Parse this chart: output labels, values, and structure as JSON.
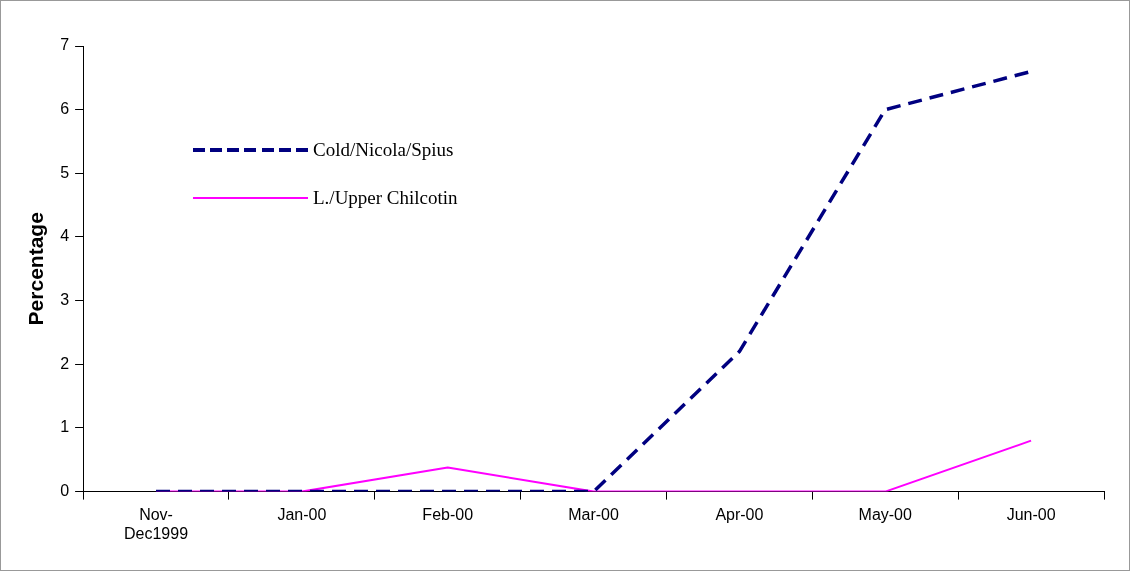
{
  "chart_data": {
    "type": "line",
    "ylabel": "Percentage",
    "categories": [
      "Nov-Dec1999",
      "Jan-00",
      "Feb-00",
      "Mar-00",
      "Apr-00",
      "May-00",
      "Jun-00"
    ],
    "series": [
      {
        "name": "Cold/Nicola/Spius",
        "color": "#000080",
        "line_style": "dashed",
        "values": [
          0,
          0,
          0,
          0,
          2.2,
          6.0,
          6.6
        ]
      },
      {
        "name": "L./Upper Chilcotin",
        "color": "#ff00ff",
        "line_style": "solid",
        "values": [
          0,
          0,
          0.38,
          0,
          0,
          0,
          0.8
        ]
      }
    ],
    "ylim": [
      0,
      7
    ],
    "yticks": [
      0,
      1,
      2,
      3,
      4,
      5,
      6,
      7
    ],
    "grid": false,
    "legend": "top left",
    "marker": "none"
  }
}
